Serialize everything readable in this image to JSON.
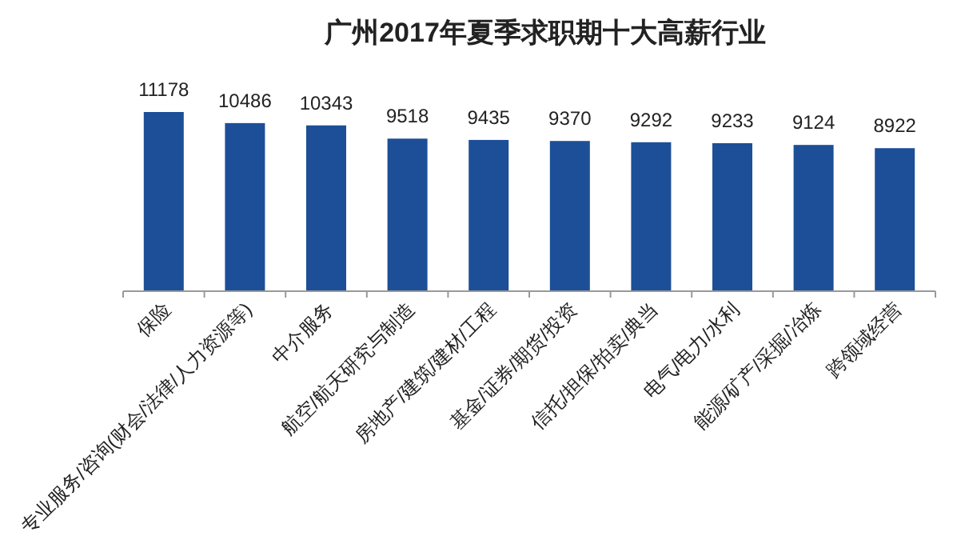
{
  "chart_data": {
    "type": "bar",
    "title": "广州2017年夏季求职期十大高薪行业",
    "categories": [
      "保险",
      "专业服务/咨询(财会/法律/人力资源等)",
      "中介服务",
      "航空/航天研究与制造",
      "房地产/建筑/建材/工程",
      "基金/证券/期货/投资",
      "信托/担保/拍卖/典当",
      "电气/电力/水利",
      "能源/矿产/采掘/冶炼",
      "跨领域经营"
    ],
    "values": [
      11178,
      10486,
      10343,
      9518,
      9435,
      9370,
      9292,
      9233,
      9124,
      8922
    ],
    "color": "#1c4f97",
    "data_labels": true
  }
}
